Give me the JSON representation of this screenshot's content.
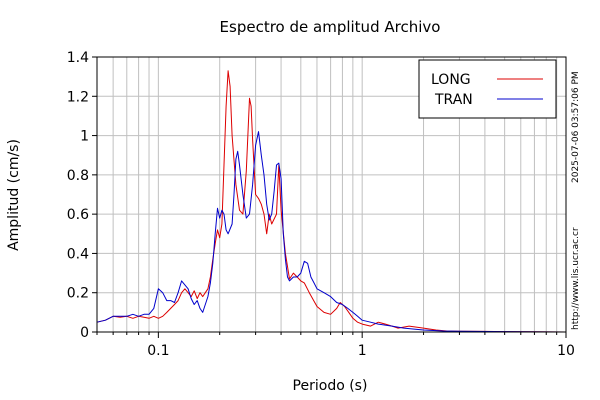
{
  "chart_data": {
    "type": "line",
    "title": "Espectro de amplitud Archivo",
    "xlabel": "Periodo (s)",
    "ylabel": "Amplitud (cm/s)",
    "x_scale": "log",
    "xlim": [
      0.05,
      10
    ],
    "ylim": [
      0,
      1.4
    ],
    "grid": true,
    "legend_position": "top-right",
    "x_ticks": [
      {
        "value": 0.1,
        "label": "0.1"
      },
      {
        "value": 1,
        "label": "1"
      },
      {
        "value": 10,
        "label": "10"
      }
    ],
    "y_ticks": [
      {
        "value": 0,
        "label": "0"
      },
      {
        "value": 0.2,
        "label": "0.2"
      },
      {
        "value": 0.4,
        "label": "0.4"
      },
      {
        "value": 0.6,
        "label": "0.6"
      },
      {
        "value": 0.8,
        "label": "0.8"
      },
      {
        "value": 1,
        "label": "1"
      },
      {
        "value": 1.2,
        "label": "1.2"
      },
      {
        "value": 1.4,
        "label": "1.4"
      }
    ],
    "series": [
      {
        "name": "LONG",
        "color": "#dd0000",
        "points": [
          [
            0.05,
            0.05
          ],
          [
            0.055,
            0.06
          ],
          [
            0.06,
            0.08
          ],
          [
            0.065,
            0.075
          ],
          [
            0.07,
            0.08
          ],
          [
            0.075,
            0.07
          ],
          [
            0.08,
            0.08
          ],
          [
            0.085,
            0.075
          ],
          [
            0.09,
            0.07
          ],
          [
            0.095,
            0.08
          ],
          [
            0.1,
            0.07
          ],
          [
            0.105,
            0.08
          ],
          [
            0.11,
            0.1
          ],
          [
            0.115,
            0.12
          ],
          [
            0.12,
            0.14
          ],
          [
            0.125,
            0.16
          ],
          [
            0.13,
            0.2
          ],
          [
            0.135,
            0.22
          ],
          [
            0.14,
            0.2
          ],
          [
            0.145,
            0.18
          ],
          [
            0.15,
            0.21
          ],
          [
            0.155,
            0.17
          ],
          [
            0.16,
            0.2
          ],
          [
            0.165,
            0.18
          ],
          [
            0.17,
            0.2
          ],
          [
            0.175,
            0.22
          ],
          [
            0.18,
            0.28
          ],
          [
            0.185,
            0.37
          ],
          [
            0.19,
            0.45
          ],
          [
            0.195,
            0.52
          ],
          [
            0.2,
            0.48
          ],
          [
            0.205,
            0.55
          ],
          [
            0.21,
            0.85
          ],
          [
            0.215,
            1.15
          ],
          [
            0.22,
            1.33
          ],
          [
            0.225,
            1.25
          ],
          [
            0.23,
            1.0
          ],
          [
            0.24,
            0.75
          ],
          [
            0.25,
            0.62
          ],
          [
            0.26,
            0.6
          ],
          [
            0.27,
            0.82
          ],
          [
            0.28,
            1.19
          ],
          [
            0.285,
            1.15
          ],
          [
            0.29,
            0.98
          ],
          [
            0.3,
            0.7
          ],
          [
            0.31,
            0.68
          ],
          [
            0.32,
            0.65
          ],
          [
            0.33,
            0.6
          ],
          [
            0.34,
            0.5
          ],
          [
            0.35,
            0.6
          ],
          [
            0.36,
            0.55
          ],
          [
            0.38,
            0.6
          ],
          [
            0.39,
            0.85
          ],
          [
            0.4,
            0.62
          ],
          [
            0.42,
            0.4
          ],
          [
            0.44,
            0.27
          ],
          [
            0.46,
            0.3
          ],
          [
            0.48,
            0.28
          ],
          [
            0.5,
            0.26
          ],
          [
            0.52,
            0.25
          ],
          [
            0.55,
            0.2
          ],
          [
            0.6,
            0.13
          ],
          [
            0.65,
            0.1
          ],
          [
            0.7,
            0.09
          ],
          [
            0.75,
            0.12
          ],
          [
            0.78,
            0.15
          ],
          [
            0.82,
            0.13
          ],
          [
            0.86,
            0.1
          ],
          [
            0.9,
            0.07
          ],
          [
            0.95,
            0.05
          ],
          [
            1.0,
            0.04
          ],
          [
            1.1,
            0.03
          ],
          [
            1.2,
            0.05
          ],
          [
            1.3,
            0.04
          ],
          [
            1.4,
            0.03
          ],
          [
            1.5,
            0.02
          ],
          [
            1.7,
            0.03
          ],
          [
            2.0,
            0.02
          ],
          [
            2.3,
            0.01
          ],
          [
            2.6,
            0.005
          ],
          [
            3.0,
            0.004
          ],
          [
            4.0,
            0.003
          ],
          [
            5.0,
            0.002
          ],
          [
            7.0,
            0.001
          ],
          [
            10.0,
            0.0
          ]
        ]
      },
      {
        "name": "TRAN",
        "color": "#0000cc",
        "points": [
          [
            0.05,
            0.05
          ],
          [
            0.055,
            0.06
          ],
          [
            0.06,
            0.08
          ],
          [
            0.065,
            0.08
          ],
          [
            0.07,
            0.08
          ],
          [
            0.075,
            0.09
          ],
          [
            0.08,
            0.08
          ],
          [
            0.085,
            0.09
          ],
          [
            0.09,
            0.09
          ],
          [
            0.095,
            0.12
          ],
          [
            0.1,
            0.22
          ],
          [
            0.105,
            0.2
          ],
          [
            0.11,
            0.16
          ],
          [
            0.115,
            0.16
          ],
          [
            0.12,
            0.15
          ],
          [
            0.125,
            0.2
          ],
          [
            0.13,
            0.26
          ],
          [
            0.135,
            0.24
          ],
          [
            0.14,
            0.22
          ],
          [
            0.145,
            0.17
          ],
          [
            0.15,
            0.14
          ],
          [
            0.155,
            0.16
          ],
          [
            0.16,
            0.12
          ],
          [
            0.165,
            0.1
          ],
          [
            0.17,
            0.14
          ],
          [
            0.175,
            0.18
          ],
          [
            0.18,
            0.25
          ],
          [
            0.185,
            0.35
          ],
          [
            0.19,
            0.5
          ],
          [
            0.195,
            0.63
          ],
          [
            0.2,
            0.58
          ],
          [
            0.205,
            0.62
          ],
          [
            0.21,
            0.6
          ],
          [
            0.215,
            0.52
          ],
          [
            0.22,
            0.5
          ],
          [
            0.23,
            0.55
          ],
          [
            0.235,
            0.7
          ],
          [
            0.24,
            0.88
          ],
          [
            0.245,
            0.92
          ],
          [
            0.25,
            0.85
          ],
          [
            0.26,
            0.7
          ],
          [
            0.27,
            0.58
          ],
          [
            0.28,
            0.6
          ],
          [
            0.29,
            0.75
          ],
          [
            0.3,
            0.95
          ],
          [
            0.31,
            1.02
          ],
          [
            0.32,
            0.9
          ],
          [
            0.33,
            0.8
          ],
          [
            0.34,
            0.65
          ],
          [
            0.35,
            0.57
          ],
          [
            0.36,
            0.6
          ],
          [
            0.37,
            0.72
          ],
          [
            0.38,
            0.85
          ],
          [
            0.39,
            0.86
          ],
          [
            0.4,
            0.78
          ],
          [
            0.41,
            0.5
          ],
          [
            0.42,
            0.37
          ],
          [
            0.43,
            0.28
          ],
          [
            0.44,
            0.26
          ],
          [
            0.46,
            0.28
          ],
          [
            0.48,
            0.28
          ],
          [
            0.5,
            0.3
          ],
          [
            0.52,
            0.36
          ],
          [
            0.54,
            0.35
          ],
          [
            0.56,
            0.28
          ],
          [
            0.58,
            0.25
          ],
          [
            0.6,
            0.22
          ],
          [
            0.65,
            0.2
          ],
          [
            0.7,
            0.18
          ],
          [
            0.75,
            0.15
          ],
          [
            0.8,
            0.14
          ],
          [
            0.85,
            0.12
          ],
          [
            0.9,
            0.1
          ],
          [
            0.95,
            0.08
          ],
          [
            1.0,
            0.06
          ],
          [
            1.1,
            0.05
          ],
          [
            1.2,
            0.04
          ],
          [
            1.4,
            0.03
          ],
          [
            1.6,
            0.02
          ],
          [
            1.8,
            0.015
          ],
          [
            2.0,
            0.01
          ],
          [
            2.5,
            0.005
          ],
          [
            3.0,
            0.004
          ],
          [
            5.0,
            0.002
          ],
          [
            10.0,
            0.0
          ]
        ]
      }
    ]
  },
  "side_text": {
    "timestamp": "2025-07-06 03:57:06 PM",
    "url": "http://www.lis.ucr.ac.cr"
  }
}
